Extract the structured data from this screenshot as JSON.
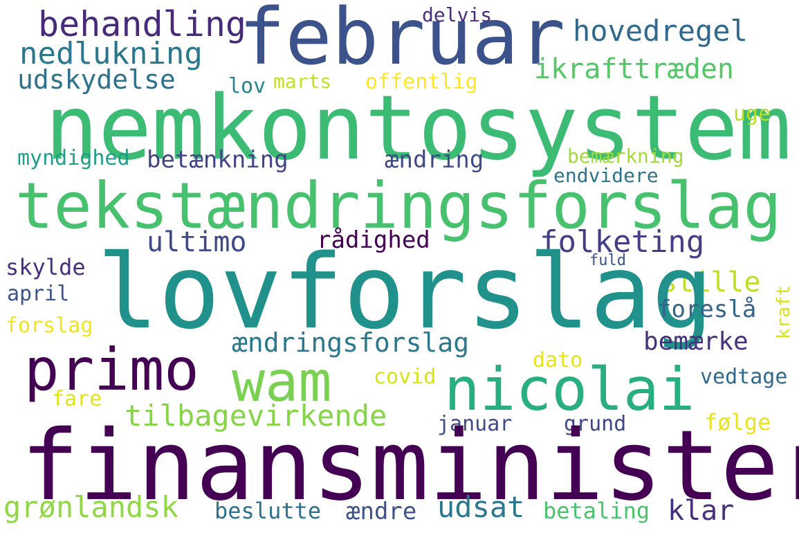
{
  "words": [
    "behandling",
    "februar",
    "hovedregel",
    "delvis",
    "nedlukning",
    "ikrafttræden",
    "udskydelse",
    "lov",
    "marts",
    "offentlig",
    "nemkontosystem",
    "uge",
    "myndighed",
    "betænkning",
    "ændring",
    "bemærkning",
    "endvidere",
    "tekstændringsforslag",
    "ultimo",
    "rådighed",
    "folketing",
    "skylde",
    "fuld",
    "stille",
    "lovforslag",
    "april",
    "kraft",
    "foreslå",
    "forslag",
    "ændringsforslag",
    "bemærke",
    "primo",
    "wam",
    "nicolai",
    "dato",
    "covid",
    "vedtage",
    "fare",
    "tilbagevirkende",
    "januar",
    "grund",
    "følge",
    "finansminister",
    "grønlandsk",
    "beslutte",
    "ændre",
    "udsat",
    "betaling",
    "klar"
  ],
  "colors": {
    "background": "#ffffff",
    "palette": "viridis"
  }
}
